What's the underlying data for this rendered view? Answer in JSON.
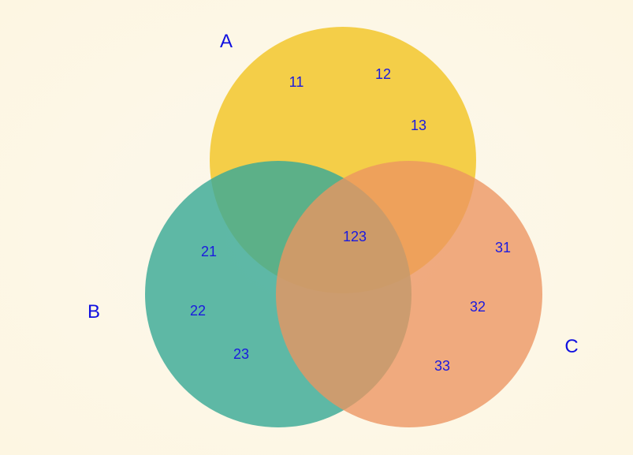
{
  "sets": [
    {
      "id": "A",
      "label": "A",
      "color": "#f2c72c"
    },
    {
      "id": "B",
      "label": "B",
      "color": "#3aa996"
    },
    {
      "id": "C",
      "label": "C",
      "color": "#ec9560"
    }
  ],
  "regions": [
    {
      "id": "11",
      "label": "11",
      "sets": [
        "A"
      ]
    },
    {
      "id": "12",
      "label": "12",
      "sets": [
        "A"
      ]
    },
    {
      "id": "13",
      "label": "13",
      "sets": [
        "A"
      ]
    },
    {
      "id": "21",
      "label": "21",
      "sets": [
        "B"
      ]
    },
    {
      "id": "22",
      "label": "22",
      "sets": [
        "B"
      ]
    },
    {
      "id": "23",
      "label": "23",
      "sets": [
        "B"
      ]
    },
    {
      "id": "31",
      "label": "31",
      "sets": [
        "C"
      ]
    },
    {
      "id": "32",
      "label": "32",
      "sets": [
        "C"
      ]
    },
    {
      "id": "33",
      "label": "33",
      "sets": [
        "C"
      ]
    },
    {
      "id": "123",
      "label": "123",
      "sets": [
        "A",
        "B",
        "C"
      ]
    }
  ],
  "label_color": "#1a1adf"
}
